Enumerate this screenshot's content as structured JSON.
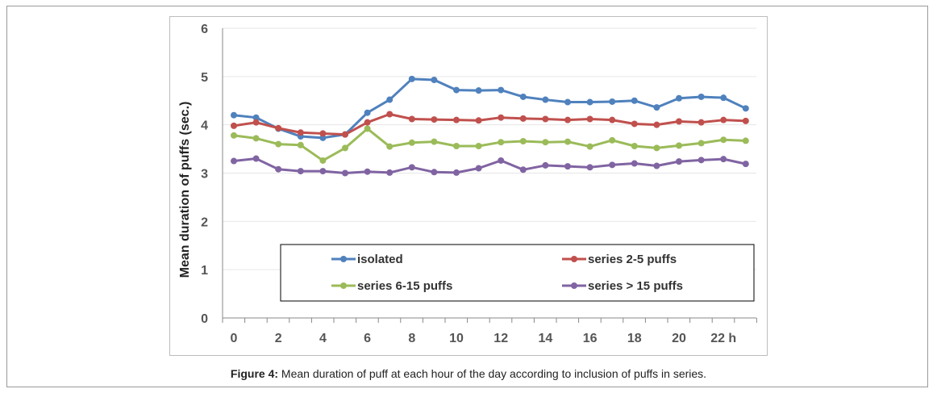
{
  "chart_data": {
    "type": "line",
    "title": "",
    "xlabel": "",
    "ylabel": "Mean duration of puffs (sec.)",
    "ylim": [
      0,
      6
    ],
    "yticks": [
      0,
      1,
      2,
      3,
      4,
      5,
      6
    ],
    "x": [
      0,
      1,
      2,
      3,
      4,
      5,
      6,
      7,
      8,
      9,
      10,
      11,
      12,
      13,
      14,
      15,
      16,
      17,
      18,
      19,
      20,
      21,
      22,
      23
    ],
    "xtick_labels": [
      {
        "x": 0,
        "label": "0"
      },
      {
        "x": 2,
        "label": "2"
      },
      {
        "x": 4,
        "label": "4"
      },
      {
        "x": 6,
        "label": "6"
      },
      {
        "x": 8,
        "label": "8"
      },
      {
        "x": 10,
        "label": "10"
      },
      {
        "x": 12,
        "label": "12"
      },
      {
        "x": 14,
        "label": "14"
      },
      {
        "x": 16,
        "label": "16"
      },
      {
        "x": 18,
        "label": "18"
      },
      {
        "x": 20,
        "label": "20"
      },
      {
        "x": 22,
        "label": "22 h"
      }
    ],
    "legend_position": "bottom-center",
    "series": [
      {
        "name": "isolated",
        "color": "#4f81bd",
        "values": [
          4.2,
          4.15,
          3.92,
          3.76,
          3.73,
          3.8,
          4.25,
          4.52,
          4.95,
          4.93,
          4.72,
          4.71,
          4.72,
          4.58,
          4.52,
          4.47,
          4.47,
          4.48,
          4.5,
          4.36,
          4.55,
          4.58,
          4.56,
          4.34
        ]
      },
      {
        "name": "series 2-5 puffs",
        "color": "#c0504d",
        "values": [
          3.98,
          4.05,
          3.93,
          3.84,
          3.82,
          3.8,
          4.05,
          4.22,
          4.12,
          4.11,
          4.1,
          4.09,
          4.15,
          4.13,
          4.12,
          4.1,
          4.12,
          4.1,
          4.02,
          4.0,
          4.07,
          4.05,
          4.1,
          4.08
        ]
      },
      {
        "name": "series 6-15 puffs",
        "color": "#9bbb59",
        "values": [
          3.78,
          3.72,
          3.6,
          3.58,
          3.26,
          3.52,
          3.92,
          3.55,
          3.63,
          3.65,
          3.56,
          3.56,
          3.64,
          3.66,
          3.64,
          3.65,
          3.55,
          3.68,
          3.56,
          3.52,
          3.57,
          3.62,
          3.69,
          3.67
        ]
      },
      {
        "name": "series > 15 puffs",
        "color": "#8064a2",
        "values": [
          3.25,
          3.3,
          3.08,
          3.04,
          3.04,
          3.0,
          3.03,
          3.01,
          3.12,
          3.02,
          3.01,
          3.1,
          3.26,
          3.07,
          3.16,
          3.14,
          3.12,
          3.17,
          3.2,
          3.15,
          3.24,
          3.27,
          3.29,
          3.19
        ]
      }
    ]
  },
  "caption": {
    "label": "Figure 4:",
    "text": " Mean duration of puff at each hour of the day according to inclusion of puffs in series."
  }
}
